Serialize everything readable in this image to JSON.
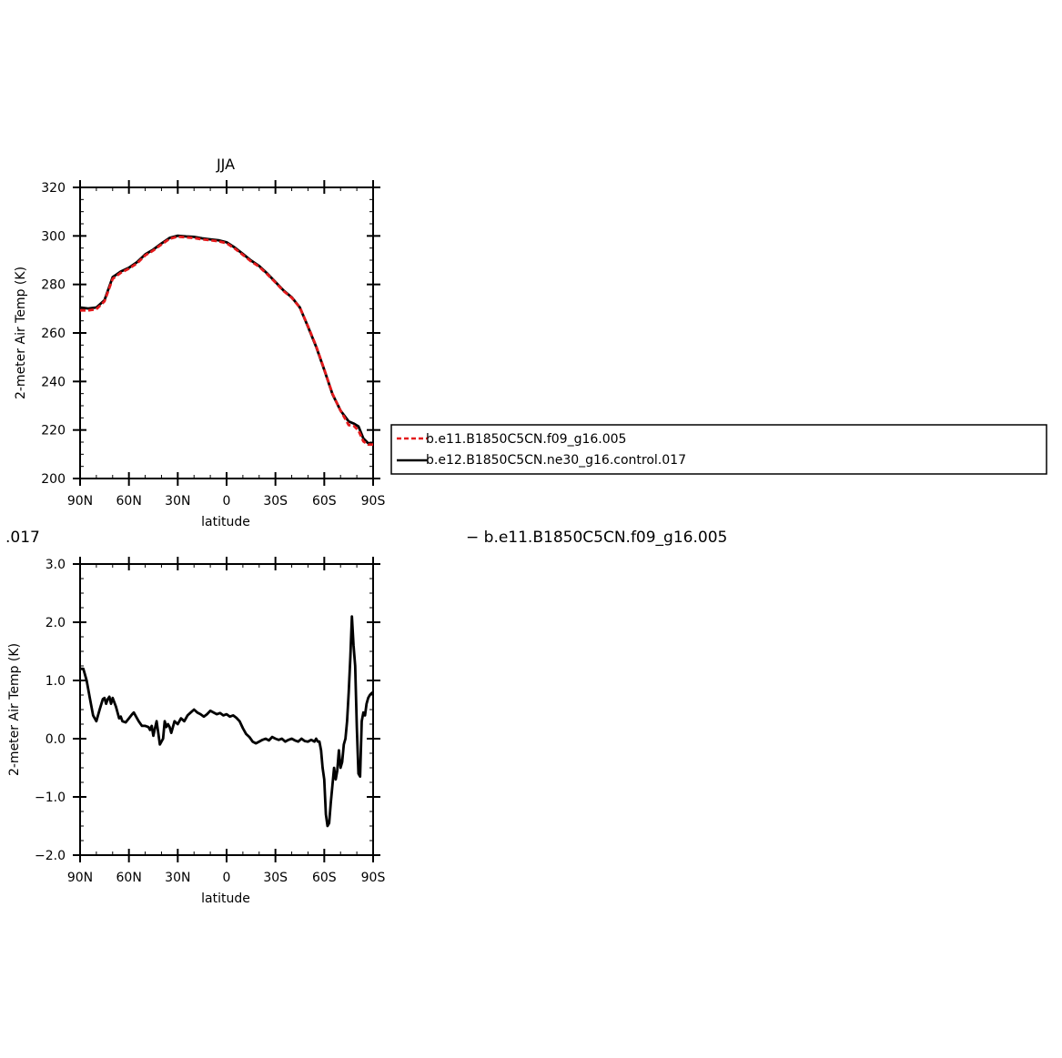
{
  "colors": {
    "model_a": "#e41a1c",
    "model_b": "#000000",
    "axis": "#000000"
  },
  "chart_data": [
    {
      "type": "line",
      "title": "JJA",
      "xlabel": "latitude",
      "ylabel": "2-meter Air Temp (K)",
      "xlim": [
        90,
        -90
      ],
      "ylim": [
        200,
        320
      ],
      "x_ticks": [
        90,
        60,
        30,
        0,
        -30,
        -60,
        -90
      ],
      "x_tick_labels": [
        "90N",
        "60N",
        "30N",
        "0",
        "30S",
        "60S",
        "90S"
      ],
      "y_ticks": [
        200,
        220,
        240,
        260,
        280,
        300,
        320
      ],
      "y_tick_labels": [
        "200",
        "220",
        "240",
        "260",
        "280",
        "300",
        "320"
      ],
      "legend_position": "right",
      "series": [
        {
          "name": "b.e11.B1850C5CN.f09_g16.005",
          "style": "dashed",
          "x": [
            90,
            85,
            80,
            75,
            70,
            65,
            60,
            55,
            50,
            45,
            40,
            35,
            30,
            25,
            20,
            15,
            10,
            5,
            0,
            -5,
            -10,
            -15,
            -20,
            -25,
            -30,
            -35,
            -40,
            -45,
            -50,
            -55,
            -60,
            -65,
            -70,
            -75,
            -78,
            -81,
            -84,
            -87,
            -90
          ],
          "values": [
            269.3,
            269.3,
            269.8,
            273,
            282.3,
            284.8,
            286.5,
            288.7,
            292,
            294,
            296.5,
            298.8,
            299.7,
            299.4,
            299.1,
            298.6,
            298.2,
            297.8,
            297,
            294.8,
            292.2,
            289.5,
            287.3,
            284.2,
            280.8,
            277.3,
            274.5,
            270.5,
            262.8,
            254.6,
            245,
            235,
            228,
            222,
            221.8,
            219.8,
            215.3,
            214,
            214
          ]
        },
        {
          "name": "b.e12.B1850C5CN.ne30_g16.control.017",
          "style": "solid",
          "x": [
            90,
            85,
            80,
            75,
            70,
            65,
            60,
            55,
            50,
            45,
            40,
            35,
            30,
            25,
            20,
            15,
            10,
            5,
            0,
            -5,
            -10,
            -15,
            -20,
            -25,
            -30,
            -35,
            -40,
            -45,
            -50,
            -55,
            -60,
            -65,
            -70,
            -75,
            -78,
            -81,
            -84,
            -87,
            -90
          ],
          "values": [
            270.5,
            270.1,
            270.5,
            273.5,
            283,
            285.3,
            286.9,
            289.2,
            292.4,
            294.4,
            296.9,
            299.2,
            300.1,
            299.8,
            299.6,
            299,
            298.6,
            298.2,
            297.4,
            295.2,
            292.6,
            289.9,
            287.6,
            284.5,
            281,
            277.5,
            274.7,
            270.5,
            262.6,
            254.3,
            244.8,
            234.8,
            228,
            223.5,
            222.7,
            221.5,
            216.5,
            214.5,
            214.5
          ]
        }
      ]
    },
    {
      "type": "line",
      "title": ".017",
      "subtitle": "− b.e11.B1850C5CN.f09_g16.005",
      "xlabel": "latitude",
      "ylabel": "2-meter Air Temp (K)",
      "xlim": [
        90,
        -90
      ],
      "ylim": [
        -2.0,
        3.0
      ],
      "x_ticks": [
        90,
        60,
        30,
        0,
        -30,
        -60,
        -90
      ],
      "x_tick_labels": [
        "90N",
        "60N",
        "30N",
        "0",
        "30S",
        "60S",
        "90S"
      ],
      "y_ticks": [
        -2.0,
        -1.0,
        0.0,
        1.0,
        2.0,
        3.0
      ],
      "y_tick_labels": [
        "−2.0",
        "−1.0",
        "0.0",
        "1.0",
        "2.0",
        "3.0"
      ],
      "series": [
        {
          "style": "solid",
          "x": [
            90,
            88,
            86,
            84,
            82,
            80,
            78,
            76,
            75,
            74,
            73,
            72,
            71,
            70,
            68,
            66,
            65,
            64,
            62,
            60,
            58,
            57,
            56,
            54,
            52,
            50,
            48,
            47,
            46,
            45,
            44,
            43,
            42,
            41,
            40,
            39,
            38,
            37,
            36,
            35,
            34,
            32,
            30,
            28,
            26,
            24,
            22,
            20,
            18,
            16,
            14,
            12,
            10,
            8,
            6,
            4,
            2,
            0,
            -2,
            -4,
            -6,
            -8,
            -10,
            -12,
            -14,
            -16,
            -18,
            -20,
            -22,
            -24,
            -26,
            -28,
            -30,
            -32,
            -34,
            -36,
            -38,
            -40,
            -42,
            -44,
            -46,
            -48,
            -50,
            -52,
            -54,
            -55,
            -56,
            -57,
            -58,
            -59,
            -60,
            -61,
            -62,
            -63,
            -64,
            -65,
            -66,
            -67,
            -68,
            -69,
            -70,
            -71,
            -72,
            -73,
            -74,
            -75,
            -76,
            -77,
            -78,
            -79,
            -80,
            -81,
            -82,
            -83,
            -84,
            -85,
            -86,
            -87,
            -88,
            -89,
            -90
          ],
          "values": [
            1.2,
            1.2,
            1.0,
            0.7,
            0.4,
            0.3,
            0.5,
            0.68,
            0.7,
            0.6,
            0.68,
            0.72,
            0.6,
            0.7,
            0.55,
            0.35,
            0.38,
            0.3,
            0.28,
            0.35,
            0.42,
            0.45,
            0.4,
            0.3,
            0.22,
            0.22,
            0.2,
            0.15,
            0.22,
            0.05,
            0.18,
            0.3,
            0.1,
            -0.1,
            -0.05,
            0.0,
            0.3,
            0.2,
            0.25,
            0.2,
            0.1,
            0.3,
            0.25,
            0.35,
            0.3,
            0.4,
            0.45,
            0.5,
            0.45,
            0.42,
            0.38,
            0.42,
            0.48,
            0.45,
            0.42,
            0.44,
            0.4,
            0.42,
            0.38,
            0.4,
            0.36,
            0.3,
            0.18,
            0.08,
            0.03,
            -0.05,
            -0.08,
            -0.05,
            -0.02,
            0.0,
            -0.03,
            0.03,
            0.0,
            -0.02,
            0.0,
            -0.05,
            -0.02,
            0.0,
            -0.03,
            -0.05,
            0.0,
            -0.04,
            -0.05,
            -0.02,
            -0.05,
            0.0,
            -0.05,
            -0.05,
            -0.2,
            -0.5,
            -0.7,
            -1.3,
            -1.5,
            -1.45,
            -1.1,
            -0.8,
            -0.5,
            -0.7,
            -0.55,
            -0.2,
            -0.5,
            -0.4,
            -0.1,
            0.0,
            0.3,
            0.8,
            1.4,
            2.1,
            1.6,
            1.25,
            0.2,
            -0.6,
            -0.65,
            0.3,
            0.45,
            0.4,
            0.6,
            0.7,
            0.75,
            0.78,
            0.8
          ]
        }
      ]
    }
  ]
}
